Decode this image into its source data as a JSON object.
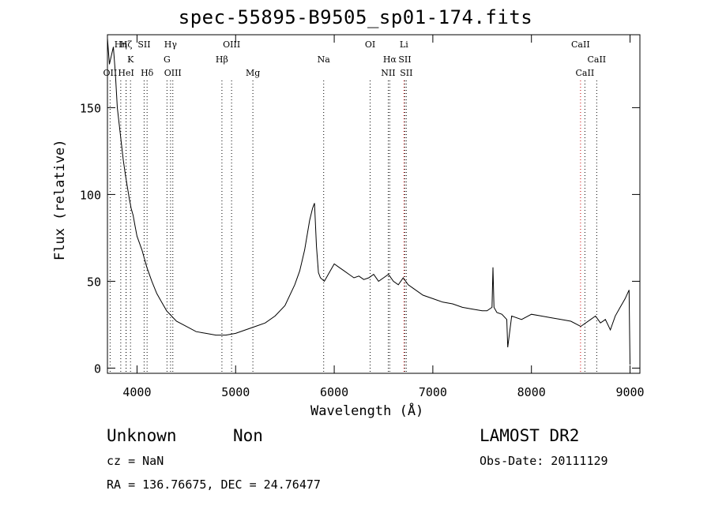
{
  "chart_data": {
    "type": "line",
    "title": "spec-55895-B9505_sp01-174.fits",
    "xlabel": "Wavelength (Å)",
    "ylabel": "Flux (relative)",
    "xlim": [
      3700,
      9100
    ],
    "ylim": [
      -3,
      192
    ],
    "x_ticks": [
      4000,
      5000,
      6000,
      7000,
      8000,
      9000
    ],
    "y_ticks": [
      0,
      50,
      100,
      150
    ],
    "grid": false,
    "series": [
      {
        "x": [
          3700,
          3720,
          3740,
          3760,
          3780,
          3800,
          3820,
          3840,
          3860,
          3880,
          3900,
          3920,
          3940,
          3960,
          3980,
          4000,
          4050,
          4100,
          4150,
          4200,
          4250,
          4300,
          4350,
          4400,
          4500,
          4600,
          4700,
          4800,
          4900,
          5000,
          5100,
          5200,
          5300,
          5400,
          5500,
          5600,
          5650,
          5700,
          5750,
          5780,
          5800,
          5820,
          5840,
          5860,
          5900,
          5950,
          6000,
          6050,
          6100,
          6150,
          6200,
          6250,
          6300,
          6350,
          6400,
          6450,
          6500,
          6550,
          6600,
          6650,
          6700,
          6750,
          6800,
          6900,
          7000,
          7100,
          7200,
          7300,
          7400,
          7500,
          7550,
          7600,
          7610,
          7620,
          7650,
          7700,
          7750,
          7760,
          7800,
          7900,
          8000,
          8100,
          8200,
          8300,
          8400,
          8500,
          8600,
          8650,
          8700,
          8750,
          8800,
          8850,
          8900,
          8950,
          8990,
          9000
        ],
        "values": [
          190,
          175,
          180,
          185,
          170,
          150,
          140,
          130,
          120,
          112,
          105,
          98,
          92,
          88,
          82,
          76,
          68,
          58,
          50,
          43,
          38,
          33,
          30,
          27,
          24,
          21,
          20,
          19,
          19,
          20,
          22,
          24,
          26,
          30,
          36,
          48,
          56,
          68,
          85,
          92,
          95,
          70,
          55,
          52,
          50,
          55,
          60,
          58,
          56,
          54,
          52,
          53,
          51,
          52,
          54,
          50,
          52,
          54,
          50,
          48,
          52,
          48,
          46,
          42,
          40,
          38,
          37,
          35,
          34,
          33,
          33,
          35,
          58,
          35,
          32,
          31,
          28,
          12,
          30,
          28,
          31,
          30,
          29,
          28,
          27,
          24,
          28,
          30,
          26,
          28,
          22,
          30,
          35,
          40,
          45,
          2
        ]
      }
    ],
    "line_markers": [
      {
        "label": "OII",
        "wavelength": 3727,
        "row": 2,
        "color": "#000000"
      },
      {
        "label": "Hη",
        "wavelength": 3835,
        "row": 0,
        "color": "#000000"
      },
      {
        "label": "K",
        "wavelength": 3934,
        "row": 1,
        "color": "#000000"
      },
      {
        "label": "HeI",
        "wavelength": 3889,
        "row": 2,
        "color": "#000000"
      },
      {
        "label": "Hζ",
        "wavelength": 3889,
        "row": 0,
        "color": "#000000"
      },
      {
        "label": "SII",
        "wavelength": 4072,
        "row": 0,
        "color": "#000000"
      },
      {
        "label": "Hδ",
        "wavelength": 4102,
        "row": 2,
        "color": "#000000"
      },
      {
        "label": "Hγ",
        "wavelength": 4340,
        "row": 0,
        "color": "#000000"
      },
      {
        "label": "G",
        "wavelength": 4304,
        "row": 1,
        "color": "#000000"
      },
      {
        "label": "OIII",
        "wavelength": 4363,
        "row": 2,
        "color": "#000000"
      },
      {
        "label": "OIII",
        "wavelength": 4959,
        "row": 0,
        "color": "#000000"
      },
      {
        "label": "Hβ",
        "wavelength": 4861,
        "row": 1,
        "color": "#000000"
      },
      {
        "label": "Mg",
        "wavelength": 5175,
        "row": 2,
        "color": "#000000"
      },
      {
        "label": "Na",
        "wavelength": 5893,
        "row": 1,
        "color": "#000000"
      },
      {
        "label": "OI",
        "wavelength": 6364,
        "row": 0,
        "color": "#000000"
      },
      {
        "label": "Hα",
        "wavelength": 6563,
        "row": 1,
        "color": "#000000"
      },
      {
        "label": "NII",
        "wavelength": 6548,
        "row": 2,
        "color": "#000000"
      },
      {
        "label": "Li",
        "wavelength": 6707,
        "row": 0,
        "color": "#cc0000"
      },
      {
        "label": "SII",
        "wavelength": 6716,
        "row": 1,
        "color": "#000000"
      },
      {
        "label": "SII",
        "wavelength": 6731,
        "row": 2,
        "color": "#000000"
      },
      {
        "label": "CaII",
        "wavelength": 8498,
        "row": 0,
        "color": "#cc0000"
      },
      {
        "label": "CaII",
        "wavelength": 8662,
        "row": 1,
        "color": "#000000"
      },
      {
        "label": "CaII",
        "wavelength": 8542,
        "row": 2,
        "color": "#000000"
      }
    ]
  },
  "info": {
    "object_class": "Unknown",
    "object_subclass": "Non",
    "survey": "LAMOST DR2",
    "cz": "cz = NaN",
    "obs_date": "Obs-Date: 20111129",
    "coords": "RA = 136.76675, DEC =  24.76477"
  }
}
